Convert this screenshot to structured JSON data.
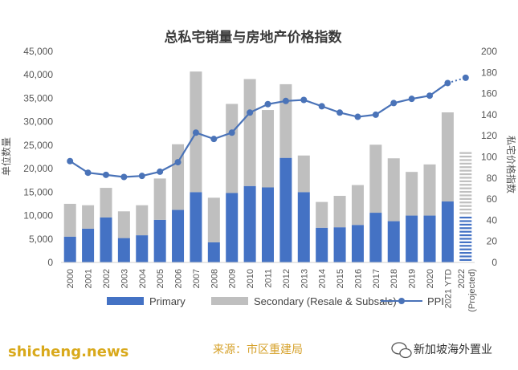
{
  "chart_data": {
    "type": "bar",
    "title": "总私宅销量与房地产价格指数",
    "ylabel": "单位数量",
    "y2label": "私宅价格指数",
    "ylim": [
      0,
      45000
    ],
    "y2lim": [
      0,
      200
    ],
    "yticks": [
      "0",
      "5,000",
      "10,000",
      "15,000",
      "20,000",
      "25,000",
      "30,000",
      "35,000",
      "40,000",
      "45,000"
    ],
    "y2ticks": [
      "0",
      "20",
      "40",
      "60",
      "80",
      "100",
      "120",
      "140",
      "160",
      "180",
      "200"
    ],
    "categories": [
      "2000",
      "2001",
      "2002",
      "2003",
      "2004",
      "2005",
      "2006",
      "2007",
      "2008",
      "2009",
      "2010",
      "2011",
      "2012",
      "2013",
      "2014",
      "2015",
      "2016",
      "2017",
      "2018",
      "2019",
      "2020",
      "2021 YTD",
      "2022 (Projected)"
    ],
    "stacked": true,
    "series": [
      {
        "name": "Primary",
        "color": "#4472c4",
        "values": [
          5500,
          7200,
          9600,
          5200,
          5800,
          9100,
          11200,
          15000,
          4300,
          14800,
          16300,
          16000,
          22300,
          15000,
          7400,
          7500,
          8000,
          10600,
          8800,
          10000,
          10000,
          13000,
          null
        ]
      },
      {
        "name": "Secondary (Resale & Subsale)",
        "color": "#bfbfbf",
        "values": [
          7000,
          5000,
          6300,
          5700,
          6400,
          8800,
          14000,
          25700,
          9500,
          19000,
          22800,
          16500,
          15700,
          7800,
          5500,
          6700,
          8500,
          14500,
          13400,
          9300,
          10900,
          19000,
          null
        ]
      }
    ],
    "projected_2022": {
      "primary": 10000,
      "secondary": 13500
    },
    "line_series": {
      "name": "PPI",
      "axis": "right",
      "color": "#4a73b8",
      "values": [
        96,
        85,
        83,
        81,
        82,
        86,
        95,
        123,
        117,
        123,
        142,
        150,
        153,
        154,
        148,
        142,
        138,
        140,
        151,
        155,
        158,
        170,
        175
      ],
      "projected_from_index": 21
    },
    "legend_position": "bottom"
  },
  "footer": {
    "source": "来源：市区重建局",
    "brand": "shicheng.news",
    "wechat": "新加坡海外置业"
  }
}
